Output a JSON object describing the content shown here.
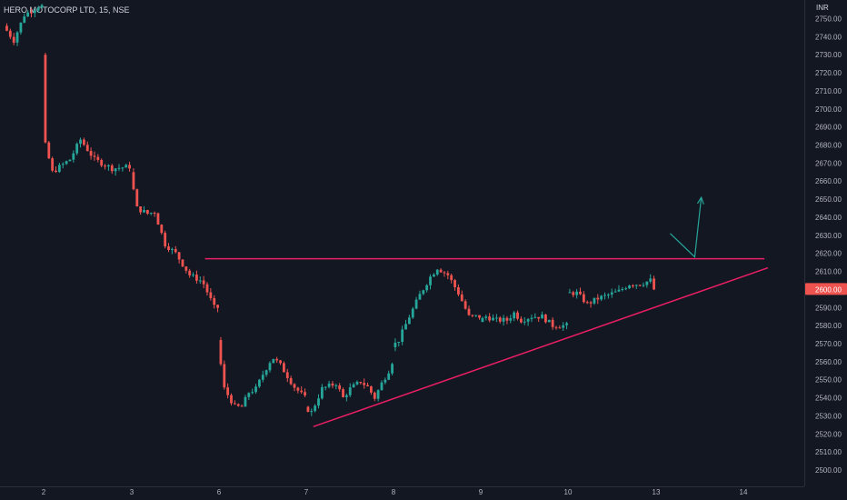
{
  "header": {
    "title": "HERO MOTOCORP LTD, 15, NSE",
    "currency": "INR"
  },
  "colors": {
    "background": "#131722",
    "up": "#26a69a",
    "down": "#ef5350",
    "trendline": "#e91e63",
    "arrow": "#26a69a",
    "text": "#b2b5be"
  },
  "chart_data": {
    "type": "candlestick",
    "title": "HERO MOTOCORP LTD, 15, NSE",
    "ylabel": "INR",
    "ylim": [
      2497,
      2757
    ],
    "y_ticks": [
      "2500.00",
      "2510.00",
      "2520.00",
      "2530.00",
      "2540.00",
      "2550.00",
      "2560.00",
      "2570.00",
      "2580.00",
      "2590.00",
      "2600.00",
      "2610.00",
      "2620.00",
      "2630.00",
      "2640.00",
      "2650.00",
      "2660.00",
      "2670.00",
      "2680.00",
      "2690.00",
      "2700.00",
      "2710.00",
      "2720.00",
      "2730.00",
      "2740.00",
      "2750.00"
    ],
    "x_ticks": [
      "2",
      "3",
      "6",
      "7",
      "8",
      "9",
      "10",
      "13",
      "14"
    ],
    "current_price": "2600.00",
    "grid": false,
    "segments": [
      {
        "start_day": "2",
        "start_slot": -11,
        "anchors": [
          [
            0,
            2746
          ],
          [
            3,
            2738
          ],
          [
            6,
            2752
          ],
          [
            10,
            2757
          ]
        ],
        "bars": 11
      },
      {
        "start_day": "2",
        "start_slot": 0,
        "anchors": [
          [
            0,
            2730
          ],
          [
            1,
            2680
          ],
          [
            3,
            2665
          ],
          [
            8,
            2672
          ],
          [
            11,
            2683
          ],
          [
            15,
            2672
          ],
          [
            20,
            2667
          ],
          [
            25,
            2668
          ]
        ],
        "bars": 25
      },
      {
        "start_day": "3",
        "start_slot": 0,
        "anchors": [
          [
            0,
            2665
          ],
          [
            2,
            2645
          ],
          [
            5,
            2642
          ],
          [
            7,
            2643
          ],
          [
            10,
            2625
          ],
          [
            13,
            2620
          ],
          [
            17,
            2608
          ],
          [
            20,
            2605
          ],
          [
            21,
            2603
          ],
          [
            24,
            2590
          ]
        ],
        "bars": 25
      },
      {
        "start_day": "6",
        "start_slot": 0,
        "anchors": [
          [
            0,
            2572
          ],
          [
            2,
            2545
          ],
          [
            5,
            2535
          ],
          [
            7,
            2535
          ],
          [
            9,
            2543
          ],
          [
            11,
            2545
          ],
          [
            13,
            2553
          ],
          [
            15,
            2560
          ],
          [
            16,
            2562
          ],
          [
            18,
            2558
          ],
          [
            20,
            2552
          ],
          [
            22,
            2546
          ],
          [
            25,
            2540
          ]
        ],
        "bars": 25
      },
      {
        "start_day": "7",
        "start_slot": 0,
        "anchors": [
          [
            0,
            2535
          ],
          [
            2,
            2532
          ],
          [
            5,
            2545
          ],
          [
            9,
            2548
          ],
          [
            11,
            2540
          ],
          [
            13,
            2545
          ],
          [
            16,
            2549
          ],
          [
            18,
            2546
          ],
          [
            20,
            2540
          ],
          [
            22,
            2548
          ],
          [
            24,
            2555
          ],
          [
            25,
            2560
          ]
        ],
        "bars": 25
      },
      {
        "start_day": "8",
        "start_slot": 0,
        "anchors": [
          [
            0,
            2568
          ],
          [
            2,
            2572
          ],
          [
            5,
            2585
          ],
          [
            8,
            2597
          ],
          [
            11,
            2607
          ],
          [
            13,
            2612
          ],
          [
            16,
            2608
          ],
          [
            19,
            2598
          ],
          [
            22,
            2585
          ]
        ],
        "bars": 25
      },
      {
        "start_day": "9",
        "start_slot": 0,
        "anchors": [
          [
            0,
            2582
          ],
          [
            2,
            2585
          ],
          [
            5,
            2583
          ],
          [
            8,
            2583
          ],
          [
            10,
            2587
          ],
          [
            12,
            2583
          ],
          [
            15,
            2585
          ],
          [
            18,
            2585
          ],
          [
            21,
            2580
          ],
          [
            24,
            2580
          ]
        ],
        "bars": 25
      },
      {
        "start_day": "10",
        "start_slot": 0,
        "anchors": [
          [
            0,
            2598
          ],
          [
            3,
            2598
          ],
          [
            6,
            2592
          ],
          [
            9,
            2595
          ],
          [
            12,
            2597
          ],
          [
            15,
            2599
          ],
          [
            18,
            2603
          ],
          [
            21,
            2603
          ],
          [
            24,
            2605
          ],
          [
            25,
            2600
          ]
        ],
        "bars": 25
      }
    ],
    "drawings": {
      "resistance": {
        "from": {
          "day": "6",
          "slot": -4,
          "price": 2617
        },
        "to": {
          "day": "14",
          "slot": 6,
          "price": 2617
        }
      },
      "support": {
        "from": {
          "day": "7",
          "slot": 2,
          "price": 2524
        },
        "to": {
          "day": "14",
          "slot": 7,
          "price": 2612
        }
      },
      "arrow": [
        {
          "day": "13",
          "slot": 4,
          "price": 2631
        },
        {
          "day": "13",
          "slot": 11,
          "price": 2618
        },
        {
          "day": "14",
          "slot": -12,
          "price": 2651
        }
      ]
    }
  }
}
